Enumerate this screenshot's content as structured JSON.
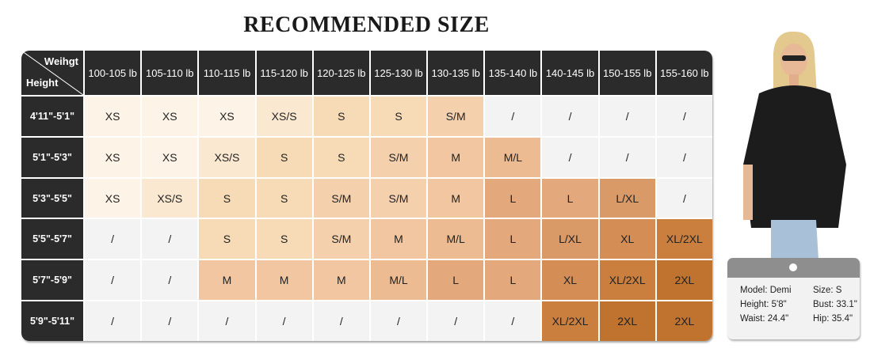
{
  "title": "RECOMMENDED SIZE",
  "table": {
    "corner_weight": "Weihgt",
    "corner_height": "Height",
    "weights": [
      "100-105 lb",
      "105-110 lb",
      "110-115 lb",
      "115-120 lb",
      "120-125 lb",
      "125-130 lb",
      "130-135 lb",
      "135-140 lb",
      "140-145 lb",
      "150-155 lb",
      "155-160 lb"
    ],
    "rows": [
      {
        "height": "4'11\"-5'1\"",
        "sizes": [
          "XS",
          "XS",
          "XS",
          "XS/S",
          "S",
          "S",
          "S/M",
          "/",
          "/",
          "/",
          "/"
        ]
      },
      {
        "height": "5'1\"-5'3\"",
        "sizes": [
          "XS",
          "XS",
          "XS/S",
          "S",
          "S",
          "S/M",
          "M",
          "M/L",
          "/",
          "/",
          "/"
        ]
      },
      {
        "height": "5'3\"-5'5\"",
        "sizes": [
          "XS",
          "XS/S",
          "S",
          "S",
          "S/M",
          "S/M",
          "M",
          "L",
          "L",
          "L/XL",
          "/"
        ]
      },
      {
        "height": "5'5\"-5'7\"",
        "sizes": [
          "/",
          "/",
          "S",
          "S",
          "S/M",
          "M",
          "M/L",
          "L",
          "L/XL",
          "XL",
          "XL/2XL"
        ]
      },
      {
        "height": "5'7\"-5'9\"",
        "sizes": [
          "/",
          "/",
          "M",
          "M",
          "M",
          "M/L",
          "L",
          "L",
          "XL",
          "XL/2XL",
          "2XL"
        ]
      },
      {
        "height": "5'9\"-5'11\"",
        "sizes": [
          "/",
          "/",
          "/",
          "/",
          "/",
          "/",
          "/",
          "/",
          "XL/2XL",
          "2XL",
          "2XL"
        ]
      }
    ]
  },
  "size_colors": {
    "XS": "#fdf3e6",
    "XS/S": "#fbe8d1",
    "S": "#f6dbb6",
    "S/M": "#f4d0ad",
    "M": "#f1c6a1",
    "M/L": "#ecbb91",
    "L": "#e3a87b",
    "L/XL": "#d99a68",
    "XL": "#d48e55",
    "XL/2XL": "#ca7f3f",
    "2XL": "#c0722f",
    "/": "#f3f3f3"
  },
  "model_card": {
    "model": "Model: Demi",
    "size": "Size:  S",
    "height": "Height: 5'8\"",
    "bust": "Bust: 33.1\"",
    "waist": "Waist: 24.4\"",
    "hip": "Hip: 35.4\""
  }
}
